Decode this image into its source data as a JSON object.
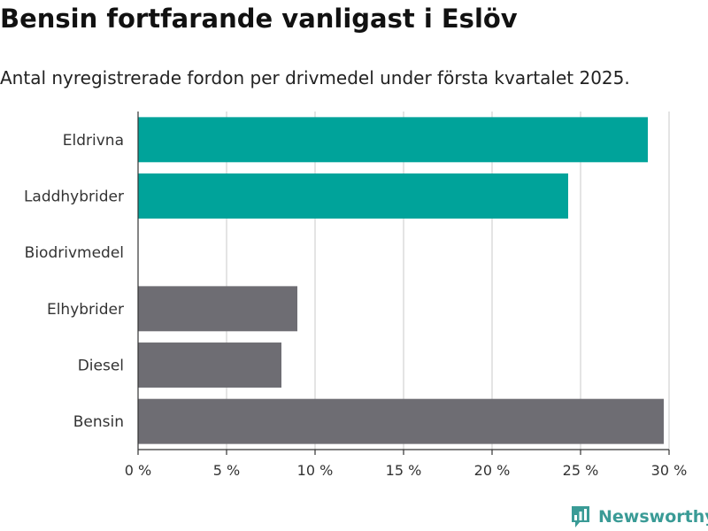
{
  "title": "Bensin fortfarande vanligast i Eslöv",
  "subtitle": "Antal nyregistrerade fordon per drivmedel under första kvartalet 2025.",
  "brand": {
    "name": "Newsworthy"
  },
  "colors": {
    "highlight": "#00a39a",
    "other": "#6e6d73",
    "grid": "#dcdcdc",
    "axis": "#333333"
  },
  "chart_data": {
    "type": "bar",
    "orientation": "horizontal",
    "categories": [
      "Eldrivna",
      "Laddhybrider",
      "Biodrivmedel",
      "Elhybrider",
      "Diesel",
      "Bensin"
    ],
    "values": [
      28.8,
      24.3,
      0,
      9.0,
      8.1,
      29.7
    ],
    "bar_colors": [
      "#00a39a",
      "#00a39a",
      "#6e6d73",
      "#6e6d73",
      "#6e6d73",
      "#6e6d73"
    ],
    "xlim": [
      0,
      30
    ],
    "xticks": [
      0,
      5,
      10,
      15,
      20,
      25,
      30
    ],
    "xtick_labels": [
      "0 %",
      "5 %",
      "10 %",
      "15 %",
      "20 %",
      "25 %",
      "30 %"
    ],
    "grid": true,
    "legend": "none"
  }
}
